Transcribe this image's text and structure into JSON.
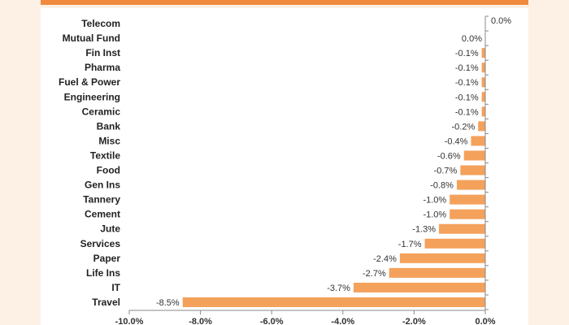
{
  "chart_data": {
    "type": "bar",
    "orientation": "horizontal",
    "title": "",
    "xlabel": "",
    "ylabel": "",
    "xlim": [
      -10.0,
      0.0
    ],
    "grid": false,
    "legend": "none",
    "bar_color": "#f4a15c",
    "categories": [
      "Telecom",
      "Mutual Fund",
      "Fin Inst",
      "Pharma",
      "Fuel & Power",
      "Engineering",
      "Ceramic",
      "Bank",
      "Misc",
      "Textile",
      "Food",
      "Gen Ins",
      "Tannery",
      "Cement",
      "Jute",
      "Services",
      "Paper",
      "Life Ins",
      "IT",
      "Travel"
    ],
    "values": [
      0.0,
      0.0,
      -0.1,
      -0.1,
      -0.1,
      -0.1,
      -0.1,
      -0.2,
      -0.4,
      -0.6,
      -0.7,
      -0.8,
      -1.0,
      -1.0,
      -1.3,
      -1.7,
      -2.4,
      -2.7,
      -3.7,
      -8.5
    ],
    "value_labels": [
      "0.0%",
      "0.0%",
      "-0.1%",
      "-0.1%",
      "-0.1%",
      "-0.1%",
      "-0.1%",
      "-0.2%",
      "-0.4%",
      "-0.6%",
      "-0.7%",
      "-0.8%",
      "-1.0%",
      "-1.0%",
      "-1.3%",
      "-1.7%",
      "-2.4%",
      "-2.7%",
      "-3.7%",
      "-8.5%"
    ],
    "x_ticks": [
      -10.0,
      -8.0,
      -6.0,
      -4.0,
      -2.0,
      0.0
    ],
    "x_tick_labels": [
      "-10.0%",
      "-8.0%",
      "-6.0%",
      "-4.0%",
      "-2.0%",
      "0.0%"
    ]
  }
}
